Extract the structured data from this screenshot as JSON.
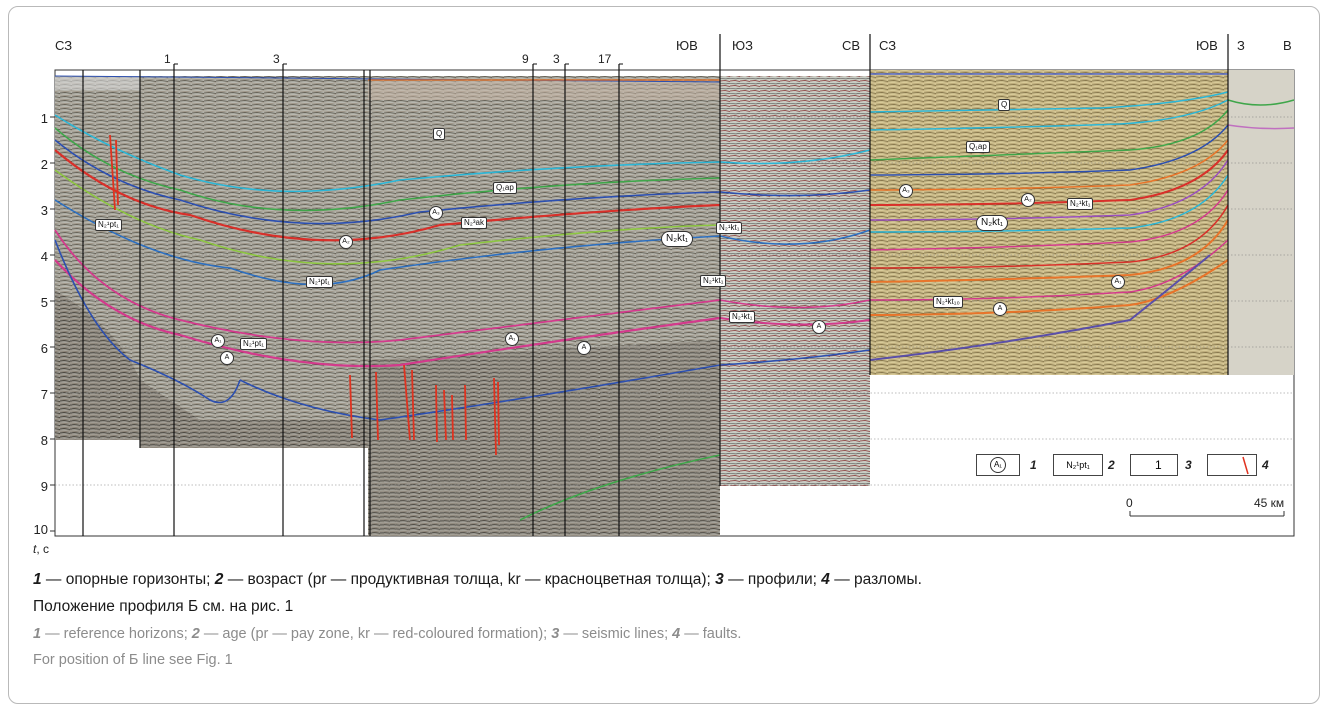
{
  "directions": {
    "left_nw": "СЗ",
    "mid_se": "ЮВ",
    "mid_sw": "ЮЗ",
    "mid_ne": "СВ",
    "right_nw": "СЗ",
    "right_se": "ЮВ",
    "right_w": "З",
    "right_e": "В"
  },
  "profile_ticks": [
    "1",
    "3",
    "9",
    "3",
    "17"
  ],
  "time_axis": {
    "ticks": [
      "1",
      "2",
      "3",
      "4",
      "5",
      "6",
      "7",
      "8",
      "9",
      "10"
    ],
    "label_var": "t",
    "label_unit": ", с"
  },
  "horizon_labels": {
    "q_left": "Q",
    "q1ap_left": "Q₁ap",
    "a3_left": "A₃",
    "n2ak": "N₂³ak",
    "a2_left": "A₂",
    "n2pt_left_top": "N₂¹pt₁",
    "n2pt_left": "N₂¹pt₁",
    "n2kt_big": "N₂kt₁",
    "n2kt_mid": "N₂¹kt₁",
    "n2kt_mid2": "N₂¹kt₁",
    "n2kt_mid3": "N₂¹kt₁",
    "a1_left": "A₁",
    "a_left": "A",
    "n2pt_bottom": "N₂¹pt₁",
    "a1_mid": "A₁",
    "a_mid": "A",
    "a_seg2": "A",
    "q_right": "Q",
    "q1ap_right": "Q₁ap",
    "a3_right": "A₃",
    "a2_right": "A₂",
    "n2kt_right": "N₂¹kt₁",
    "n2kt_big_right": "N₂kt₁",
    "a1_right": "A₁",
    "n2kt_right_low": "N₂¹kt₁₀",
    "a_right": "A"
  },
  "legend": {
    "items": [
      {
        "symbol": "A₁",
        "num": "1"
      },
      {
        "symbol": "N₂¹pt₁",
        "num": "2"
      },
      {
        "symbol": "1",
        "num": "3"
      },
      {
        "symbol": "",
        "num": "4"
      }
    ],
    "scale_start": "0",
    "scale_end": "45 км"
  },
  "caption": {
    "ru_line1": {
      "n1": "1",
      "t1": " — опорные горизонты; ",
      "n2": "2",
      "t2": " — возраст (pr — продуктивная толща, kr — красноцветная толща); ",
      "n3": "3",
      "t3": " — профили; ",
      "n4": "4",
      "t4": " — разломы."
    },
    "ru_line2": "Положение профиля Б см. на рис. 1",
    "en_line1": {
      "n1": "1",
      "t1": " — reference horizons; ",
      "n2": "2",
      "t2": " — age (pr — pay zone, kr — red-coloured formation); ",
      "n3": "3",
      "t3": " — seismic lines; ",
      "n4": "4",
      "t4": " — faults."
    },
    "en_line2": "For position of Б line see Fig. 1"
  },
  "colors": {
    "horizon_cyan": "#2bb6d6",
    "horizon_green": "#3fa64a",
    "horizon_blue": "#2c4fb0",
    "horizon_red": "#d8302a",
    "horizon_magenta": "#d33a8c",
    "horizon_orange": "#e8742a",
    "fault_red": "#e0321f"
  }
}
